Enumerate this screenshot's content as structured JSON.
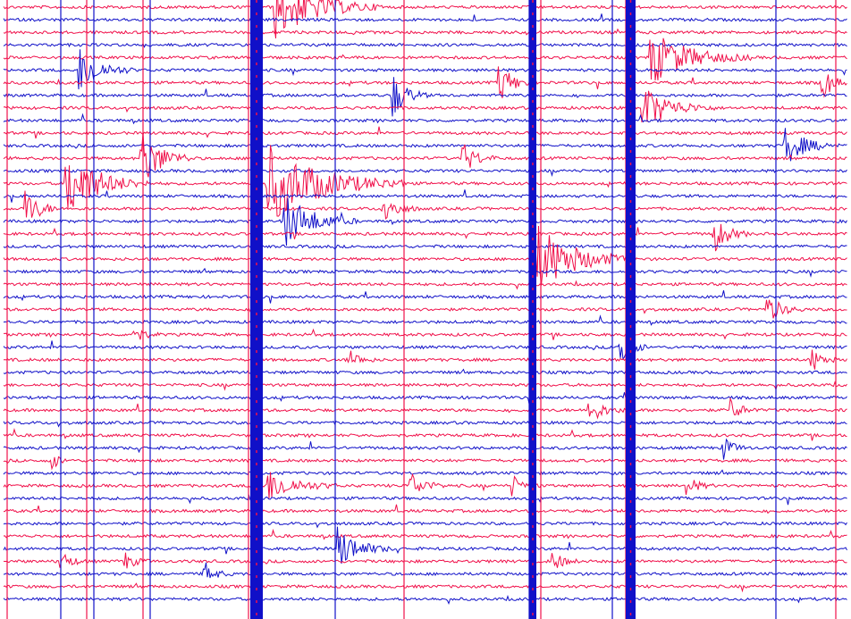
{
  "helicorder": {
    "colors": [
      "#f0104a",
      "#1010c8"
    ]
  }
}
